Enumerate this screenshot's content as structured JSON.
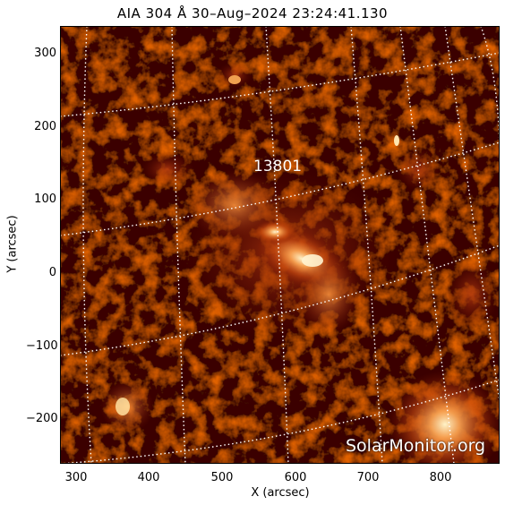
{
  "title": "AIA 304 Å 30–Aug–2024 23:24:41.130",
  "axes": {
    "xlabel": "X (arcsec)",
    "ylabel": "Y (arcsec)",
    "xticks": [
      "300",
      "400",
      "500",
      "600",
      "700",
      "800"
    ],
    "yticks": [
      "300",
      "200",
      "100",
      "0",
      "−100",
      "−200"
    ]
  },
  "region_label": "13801",
  "watermark": "SolarMonitor.org",
  "colors": {
    "background": "#1a0000",
    "mid": "#8a1a00",
    "bright": "#e8701a",
    "hot": "#fff0c0",
    "grid": "#ffffff"
  }
}
